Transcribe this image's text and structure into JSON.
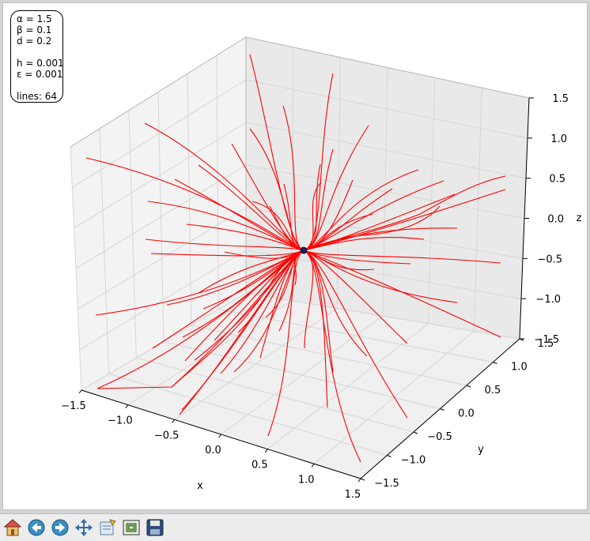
{
  "info_box": {
    "alpha": "α = 1.5",
    "beta": "β = 0.1",
    "d": "d = 0.2",
    "h": "h = 0.001",
    "eps": "ε = 0.001",
    "lines": "lines: 64"
  },
  "toolbar": {
    "buttons": [
      "home-icon",
      "back-icon",
      "forward-icon",
      "pan-icon",
      "configure-subplots-icon",
      "zoom-to-rect-icon",
      "save-icon"
    ]
  },
  "colors": {
    "trajectory": "#ff0000",
    "pane": "#f2f2f2",
    "grid": "#d8d8d8",
    "center_marker": "#000080"
  },
  "chart_data": {
    "type": "line3d",
    "xlabel": "x",
    "ylabel": "y",
    "zlabel": "z",
    "xlim": [
      -1.5,
      1.5
    ],
    "ylim": [
      -1.5,
      1.5
    ],
    "zlim": [
      -1.5,
      1.5
    ],
    "xticks": [
      "−1.5",
      "−1.0",
      "−0.5",
      "0.0",
      "0.5",
      "1.0",
      "1.5"
    ],
    "yticks": [
      "−1.5",
      "−1.0",
      "−0.5",
      "0.0",
      "0.5",
      "1.0",
      "1.5"
    ],
    "zticks": [
      "−1.5",
      "−1.0",
      "−0.5",
      "0.0",
      "0.5",
      "1.0",
      "1.5"
    ],
    "grid": true,
    "equilibrium": [
      0,
      0,
      0
    ],
    "series": [
      {
        "name": "",
        "x": [
          -0.8,
          -0.2,
          0.0
        ],
        "y": [
          0.9,
          0.3,
          0.0
        ],
        "z": [
          1.4,
          0.5,
          0.0
        ]
      },
      {
        "name": "",
        "x": [
          0.6,
          0.2,
          0.0
        ],
        "y": [
          -1.2,
          -0.4,
          0.0
        ],
        "z": [
          -1.3,
          -0.4,
          0.0
        ]
      }
    ]
  }
}
